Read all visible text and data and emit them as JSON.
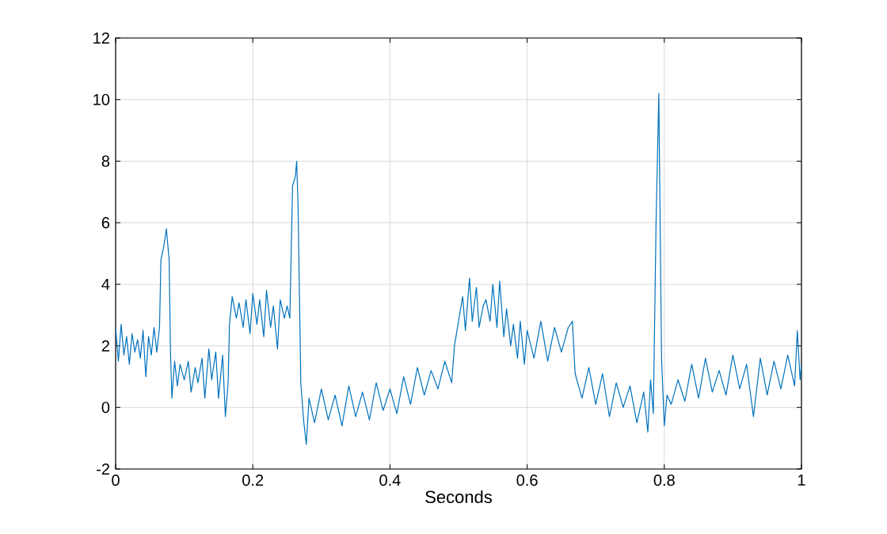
{
  "chart_data": {
    "type": "line",
    "xlabel": "Seconds",
    "xlim": [
      0,
      1
    ],
    "ylim": [
      -2,
      12
    ],
    "xticks": [
      0,
      0.2,
      0.4,
      0.6,
      0.8,
      1
    ],
    "yticks": [
      -2,
      0,
      2,
      4,
      6,
      8,
      10,
      12
    ],
    "grid": true,
    "line_style": "solid",
    "marker": "none",
    "series": [
      {
        "color": "#0072bd",
        "x": [
          0,
          0.004,
          0.008,
          0.012,
          0.016,
          0.02,
          0.024,
          0.028,
          0.032,
          0.036,
          0.04,
          0.044,
          0.048,
          0.052,
          0.056,
          0.06,
          0.064,
          0.066,
          0.07,
          0.074,
          0.078,
          0.08,
          0.082,
          0.086,
          0.09,
          0.094,
          0.1,
          0.106,
          0.11,
          0.116,
          0.12,
          0.126,
          0.13,
          0.136,
          0.14,
          0.146,
          0.15,
          0.156,
          0.16,
          0.164,
          0.166,
          0.17,
          0.176,
          0.18,
          0.186,
          0.19,
          0.196,
          0.2,
          0.206,
          0.21,
          0.216,
          0.22,
          0.226,
          0.23,
          0.236,
          0.24,
          0.246,
          0.25,
          0.254,
          0.258,
          0.262,
          0.264,
          0.266,
          0.27,
          0.274,
          0.278,
          0.282,
          0.29,
          0.3,
          0.31,
          0.32,
          0.33,
          0.34,
          0.35,
          0.36,
          0.37,
          0.38,
          0.39,
          0.4,
          0.41,
          0.42,
          0.43,
          0.44,
          0.45,
          0.46,
          0.47,
          0.48,
          0.49,
          0.494,
          0.5,
          0.506,
          0.51,
          0.516,
          0.52,
          0.526,
          0.53,
          0.536,
          0.54,
          0.546,
          0.55,
          0.556,
          0.56,
          0.566,
          0.57,
          0.576,
          0.58,
          0.586,
          0.59,
          0.596,
          0.6,
          0.61,
          0.62,
          0.63,
          0.64,
          0.65,
          0.66,
          0.666,
          0.67,
          0.68,
          0.69,
          0.7,
          0.71,
          0.72,
          0.73,
          0.74,
          0.75,
          0.76,
          0.77,
          0.776,
          0.78,
          0.784,
          0.788,
          0.792,
          0.796,
          0.8,
          0.804,
          0.81,
          0.82,
          0.83,
          0.84,
          0.85,
          0.86,
          0.87,
          0.88,
          0.89,
          0.9,
          0.91,
          0.92,
          0.93,
          0.94,
          0.95,
          0.96,
          0.97,
          0.98,
          0.99,
          0.994,
          0.998,
          1
        ],
        "values": [
          2.6,
          1.5,
          2.7,
          1.7,
          2.3,
          1.4,
          2.4,
          1.8,
          2.2,
          1.6,
          2.5,
          1,
          2.3,
          1.7,
          2.6,
          1.8,
          2.6,
          4.8,
          5.2,
          5.8,
          4.8,
          1.8,
          0.3,
          1.5,
          0.7,
          1.4,
          0.9,
          1.5,
          0.5,
          1.3,
          0.8,
          1.6,
          0.3,
          1.9,
          0.9,
          1.8,
          0.3,
          1.7,
          -0.3,
          0.8,
          2.7,
          3.6,
          2.9,
          3.4,
          2.6,
          3.5,
          2.4,
          3.7,
          2.7,
          3.5,
          2.3,
          3.8,
          2.6,
          3.3,
          1.9,
          3.5,
          2.9,
          3.3,
          2.9,
          7.2,
          7.5,
          8,
          6.5,
          0.8,
          -0.4,
          -1.2,
          0.3,
          -0.5,
          0.6,
          -0.4,
          0.4,
          -0.6,
          0.7,
          -0.3,
          0.5,
          -0.4,
          0.8,
          -0.1,
          0.6,
          -0.2,
          1,
          0.1,
          1.3,
          0.4,
          1.2,
          0.6,
          1.5,
          0.8,
          2,
          2.8,
          3.6,
          2.5,
          4.2,
          2.8,
          3.9,
          2.6,
          3.3,
          3.5,
          2.8,
          4,
          2.6,
          4.1,
          2.3,
          3.2,
          2,
          2.7,
          1.6,
          2.8,
          1.4,
          2.5,
          1.6,
          2.8,
          1.5,
          2.6,
          1.8,
          2.6,
          2.8,
          1.1,
          0.3,
          1.3,
          0.1,
          1.1,
          -0.3,
          0.8,
          0,
          0.7,
          -0.5,
          0.5,
          -0.8,
          0.9,
          -0.2,
          6,
          10.2,
          1.6,
          -0.6,
          0.4,
          0.1,
          0.9,
          0.2,
          1.4,
          0.3,
          1.6,
          0.5,
          1.2,
          0.4,
          1.7,
          0.6,
          1.4,
          -0.3,
          1.6,
          0.4,
          1.5,
          0.6,
          1.7,
          0.7,
          2.5,
          0.9,
          1.4
        ]
      }
    ]
  }
}
